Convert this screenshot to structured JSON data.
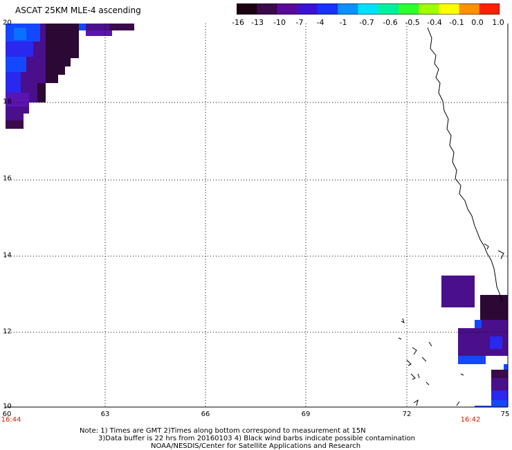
{
  "header": {
    "title": "ASCAT 25KM MLE-4 ascending"
  },
  "colorbar": {
    "labels": [
      "-16",
      "-13",
      "-10",
      "-7",
      "-4",
      "-1",
      "-0.7",
      "-0.6",
      "-0.5",
      "-0.4",
      "-0.1",
      "0.0",
      "1.0"
    ],
    "colors": [
      "#1a0010",
      "#3a0a4a",
      "#5a0a9a",
      "#3a12d0",
      "#1a30ff",
      "#0a90ff",
      "#00e0ff",
      "#00f0a0",
      "#30ff30",
      "#a0ff00",
      "#ffff00",
      "#ff9000",
      "#ff2000"
    ]
  },
  "map": {
    "lat_labels": [
      "20",
      "18",
      "16",
      "14",
      "12",
      "10"
    ],
    "lon_labels": [
      "60",
      "63",
      "66",
      "69",
      "72",
      "75"
    ],
    "time_labels": [
      "16:44",
      "16:42"
    ],
    "swath_colors": {
      "dark": "#2c0834",
      "purple": "#4a0f8a",
      "violet": "#5a14b0",
      "blue": "#2a28ee",
      "bright_blue": "#1448ff",
      "cyan_blue": "#0a70ff"
    }
  },
  "footer": {
    "line1": "Note: 1) Times are GMT 2)Times along bottom correspond to measurement at 15N",
    "line2": "3)Data buffer is 22 hrs from 20160103 4) Black wind barbs indicate possible contamination",
    "line3": "NOAA/NESDIS/Center for Satellite Applications and Research"
  }
}
